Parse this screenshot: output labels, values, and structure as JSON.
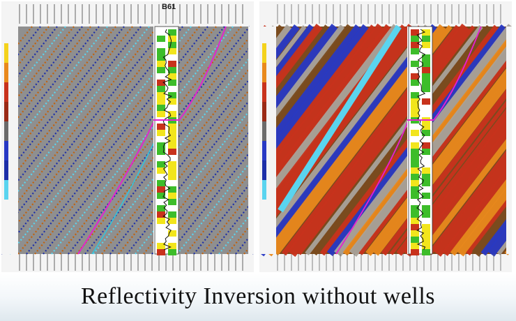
{
  "caption": "Reflectivity Inversion without wells",
  "panels": [
    {
      "id": "left",
      "well_label": "B61",
      "style": "sparse reflectivity"
    },
    {
      "id": "right",
      "style": "dense colored inversion"
    }
  ],
  "colors": {
    "background_gray": "#8f8f8f",
    "reflector_orange": "#c2620c",
    "reflector_blue": "#1d2fa8",
    "reflector_cyan": "#5ad4ef",
    "horizon_magenta": "#e61fd0",
    "horizon_cyan": "#2fc6e0",
    "log_green": "#3dbd2a",
    "log_yellow": "#f2e51c",
    "inversion_red": "#c8321c",
    "inversion_orange": "#e9891c",
    "inversion_brown": "#7a4b1e",
    "inversion_gray": "#a9a39b",
    "inversion_blue": "#2839c4"
  }
}
